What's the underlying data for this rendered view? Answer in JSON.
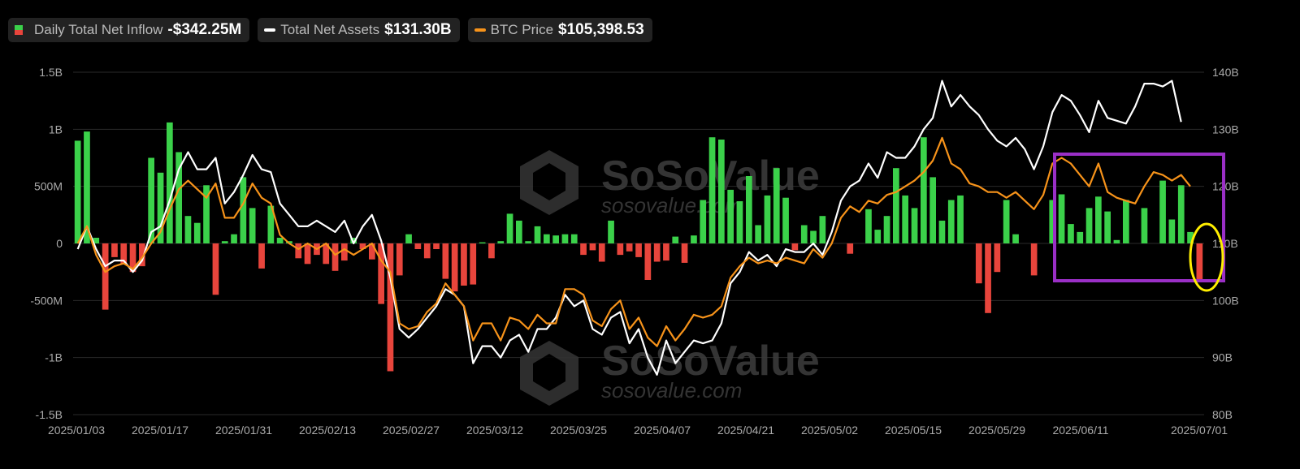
{
  "legend": {
    "inflow_label": "Daily Total Net Inflow",
    "inflow_value": "-$342.25M",
    "assets_label": "Total Net Assets",
    "assets_value": "$131.30B",
    "btc_label": "BTC Price",
    "btc_value": "$105,398.53"
  },
  "watermark": {
    "brand": "SoSoValue",
    "url": "sosovalue.com"
  },
  "colors": {
    "positive": "#3bd14a",
    "negative": "#e8453c",
    "assets": "#ffffff",
    "btc": "#f7931a",
    "highlight_box": "#9a2fc6",
    "highlight_circle": "#ffee00"
  },
  "chart_data": {
    "type": "bar",
    "title": "",
    "xlabel": "",
    "ylabel": "",
    "left_axis": {
      "ylim": [
        -1.5,
        1.5
      ],
      "ticks": [
        "1.5B",
        "1B",
        "500M",
        "0",
        "-500M",
        "-1B",
        "-1.5B"
      ]
    },
    "right_axis": {
      "ylim": [
        80,
        140
      ],
      "ticks": [
        "140B",
        "130B",
        "120B",
        "110B",
        "100B",
        "90B",
        "80B"
      ]
    },
    "x_tick_labels": [
      "2025/01/03",
      "2025/01/17",
      "2025/01/31",
      "2025/02/13",
      "2025/02/27",
      "2025/03/12",
      "2025/03/25",
      "2025/04/07",
      "2025/04/21",
      "2025/05/02",
      "2025/05/15",
      "2025/05/29",
      "2025/06/11",
      "2025/07/01"
    ],
    "series": [
      {
        "type": "bar",
        "axis": "left",
        "values": [
          0.9,
          0.98,
          0.05,
          -0.58,
          -0.12,
          -0.18,
          -0.25,
          -0.2,
          0.75,
          0.62,
          1.06,
          0.8,
          0.24,
          0.18,
          0.51,
          -0.45,
          0.02,
          0.08,
          0.58,
          0.31,
          -0.22,
          0.33,
          0.05,
          0.02,
          -0.13,
          -0.18,
          -0.1,
          -0.18,
          -0.24,
          -0.15,
          0.05,
          -0.05,
          -0.14,
          -0.53,
          -1.12,
          -0.28,
          0.08,
          -0.05,
          -0.13,
          -0.05,
          -0.31,
          -0.42,
          -0.37,
          -0.36,
          0.01,
          -0.13,
          0.02,
          0.26,
          0.2,
          0.02,
          0.15,
          0.08,
          0.07,
          0.08,
          0.08,
          -0.1,
          -0.06,
          -0.16,
          0.2,
          -0.1,
          -0.07,
          -0.12,
          -0.32,
          -0.16,
          -0.15,
          0.06,
          -0.17,
          0.07,
          0.38,
          0.93,
          0.91,
          0.47,
          0.37,
          0.59,
          0.16,
          0.42,
          0.66,
          0.4,
          -0.06,
          0.16,
          0.11,
          0.24,
          0.0,
          0.0,
          -0.09,
          0.0,
          0.3,
          0.12,
          0.24,
          0.66,
          0.42,
          0.31,
          0.93,
          0.58,
          0.2,
          0.38,
          0.42,
          0.0,
          -0.35,
          -0.61,
          -0.25,
          0.38,
          0.08,
          0.0,
          -0.28,
          0.0,
          0.38,
          0.43,
          0.17,
          0.1,
          0.31,
          0.41,
          0.28,
          0.03,
          0.38,
          0.0,
          0.31,
          0.0,
          0.55,
          0.21,
          0.51,
          0.1,
          -0.34
        ]
      },
      {
        "name": "Total Net Assets",
        "type": "line",
        "axis": "right",
        "values": [
          109.0,
          113.0,
          109.0,
          106.0,
          107.0,
          107.0,
          105.0,
          107.0,
          112.0,
          113.0,
          117.5,
          123.0,
          126.0,
          123.0,
          123.0,
          125.0,
          117.0,
          119.0,
          122.0,
          125.5,
          123.0,
          122.5,
          117.0,
          115.0,
          113.0,
          113.0,
          114.0,
          113.0,
          112.0,
          114.0,
          110.0,
          113.0,
          115.0,
          110.5,
          104.0,
          95.0,
          93.5,
          95.0,
          97.0,
          99.0,
          102.0,
          101.0,
          99.0,
          89.0,
          92.0,
          92.0,
          90.0,
          93.0,
          94.0,
          91.0,
          95.0,
          95.0,
          97.0,
          101.0,
          99.0,
          100.0,
          95.0,
          94.0,
          97.0,
          98.0,
          92.5,
          95.0,
          90.0,
          87.0,
          93.0,
          89.0,
          91.0,
          93.0,
          92.5,
          93.0,
          96.0,
          103.0,
          105.0,
          108.5,
          107.0,
          108.0,
          106.0,
          109.0,
          108.5,
          108.5,
          110.0,
          108.0,
          112.0,
          117.5,
          120.0,
          121.0,
          124.0,
          121.5,
          126.0,
          125.0,
          125.0,
          127.0,
          130.0,
          132.0,
          138.5,
          134.0,
          136.0,
          134.0,
          132.5,
          130.0,
          128.0,
          127.0,
          128.5,
          126.5,
          123.0,
          127.0,
          133.0,
          136.0,
          135.0,
          132.5,
          129.5,
          135.0,
          132.0,
          131.5,
          131.0,
          134.0,
          138.0,
          138.0,
          137.5,
          138.5,
          131.3
        ]
      },
      {
        "name": "BTC Price",
        "type": "line",
        "axis": "right",
        "values": [
          110.0,
          113.0,
          108.0,
          105.0,
          106.0,
          106.5,
          105.5,
          107.5,
          110.0,
          112.0,
          116.0,
          119.5,
          121.0,
          119.5,
          118.0,
          120.5,
          114.5,
          114.5,
          117.0,
          120.5,
          118.0,
          117.0,
          111.5,
          110.0,
          109.0,
          110.0,
          109.0,
          110.0,
          108.0,
          109.0,
          108.0,
          109.0,
          110.0,
          107.0,
          105.0,
          96.0,
          95.0,
          95.5,
          98.0,
          99.5,
          103.0,
          101.0,
          99.0,
          93.0,
          96.0,
          96.0,
          93.0,
          97.0,
          96.5,
          95.0,
          97.5,
          96.0,
          96.0,
          102.0,
          102.0,
          101.0,
          96.5,
          95.5,
          98.5,
          100.0,
          95.0,
          97.0,
          93.5,
          92.0,
          95.5,
          93.0,
          95.0,
          97.5,
          97.0,
          97.5,
          99.0,
          104.0,
          106.0,
          107.5,
          106.5,
          107.0,
          106.5,
          107.5,
          107.0,
          106.5,
          109.0,
          107.5,
          110.0,
          114.5,
          116.5,
          115.5,
          117.5,
          117.0,
          118.5,
          119.0,
          120.0,
          121.0,
          122.5,
          124.5,
          128.5,
          124.0,
          123.0,
          120.5,
          120.0,
          119.0,
          119.0,
          118.0,
          119.0,
          117.5,
          116.0,
          118.5,
          124.0,
          125.0,
          124.0,
          122.0,
          120.0,
          124.0,
          119.0,
          118.0,
          117.5,
          117.0,
          120.0,
          122.5,
          122.0,
          121.0,
          122.0,
          120.0
        ]
      }
    ]
  }
}
